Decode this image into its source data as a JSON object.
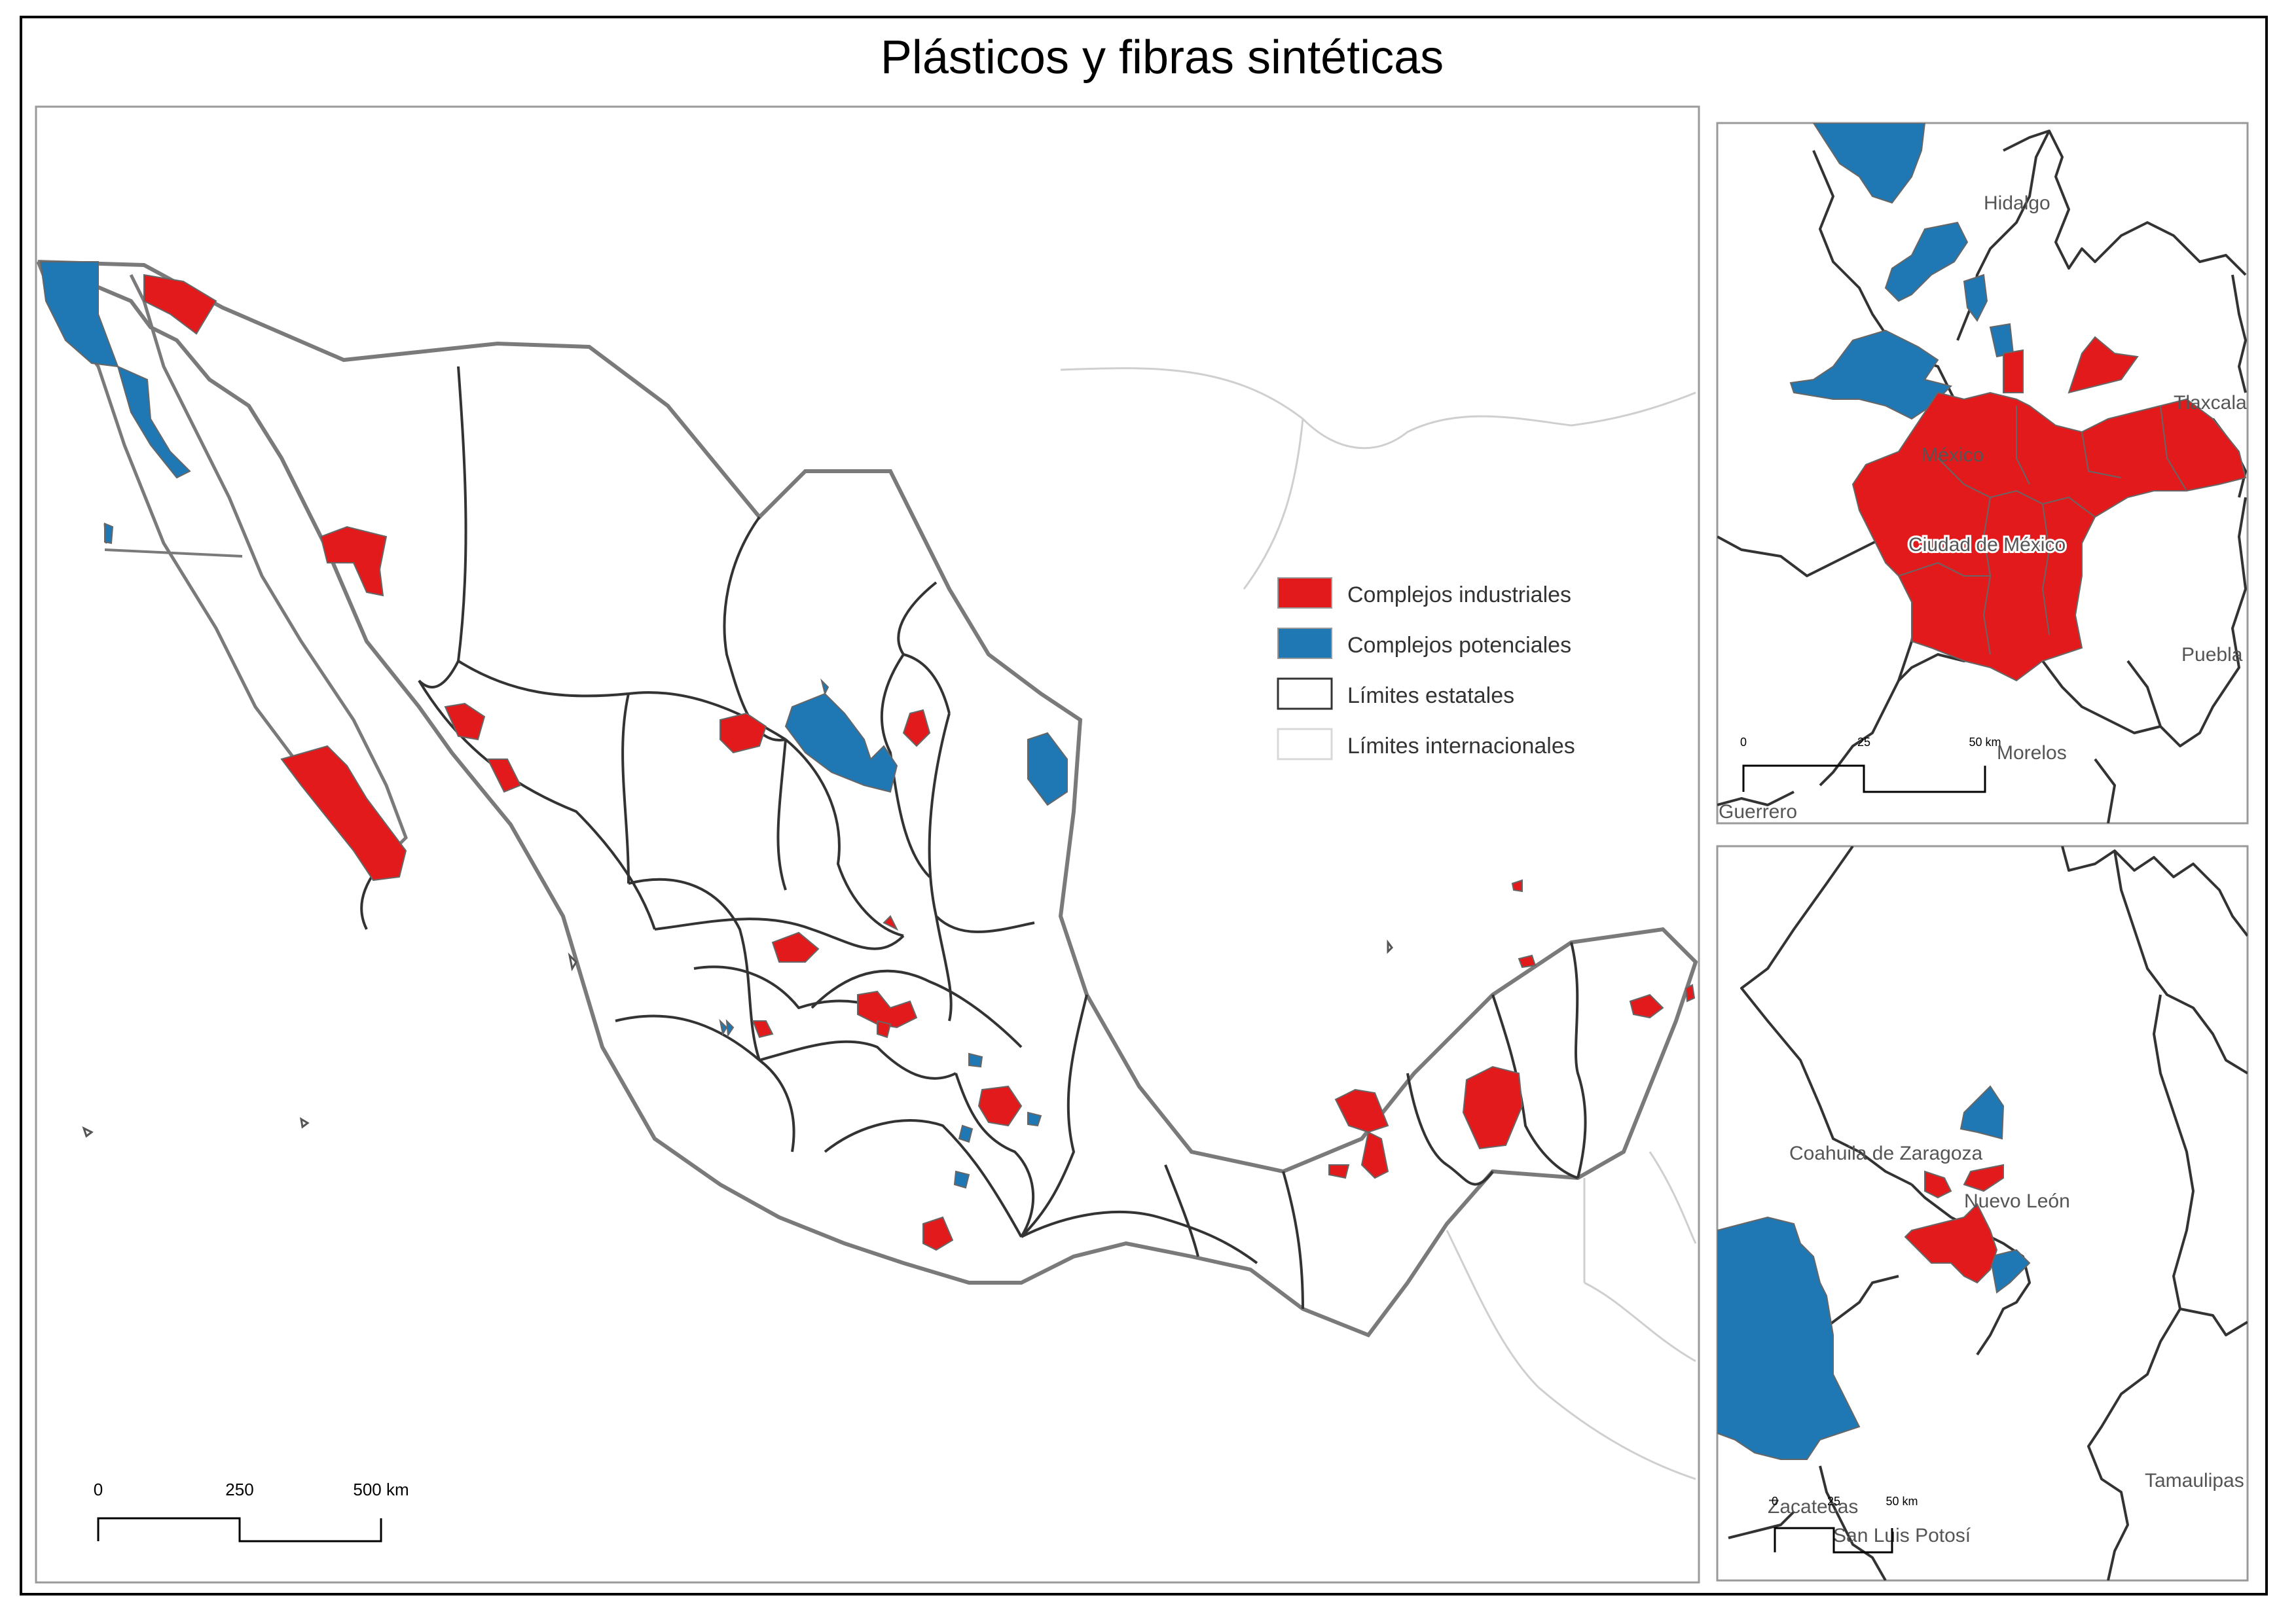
{
  "title": "Plásticos y fibras sintéticas",
  "colors": {
    "industrial": "#e31a1c",
    "potential": "#1f78b4",
    "state_border": "#333333",
    "intl_border": "#bfbfbf",
    "label": "#555555",
    "frame": "#000000"
  },
  "legend": [
    {
      "label": "Complejos industriales",
      "swatch": "industrial"
    },
    {
      "label": "Complejos potenciales",
      "swatch": "potential"
    },
    {
      "label": "Límites estatales",
      "swatch": "state"
    },
    {
      "label": "Límites internacionales",
      "swatch": "intl"
    }
  ],
  "main_scale": {
    "labels": [
      "0",
      "250",
      "500 km"
    ]
  },
  "inset_top": {
    "labels": [
      "Hidalgo",
      "Tlaxcala",
      "México",
      "Ciudad de México",
      "Puebla",
      "Morelos",
      "Guerrero"
    ],
    "scale": {
      "labels": [
        "0",
        "25",
        "50 km"
      ]
    }
  },
  "inset_bottom": {
    "labels": [
      "Coahuila de Zaragoza",
      "Nuevo León",
      "Tamaulipas",
      "Zacatecas",
      "San Luis Potosí"
    ],
    "scale": {
      "labels": [
        "0",
        "25",
        "50 km"
      ]
    }
  }
}
